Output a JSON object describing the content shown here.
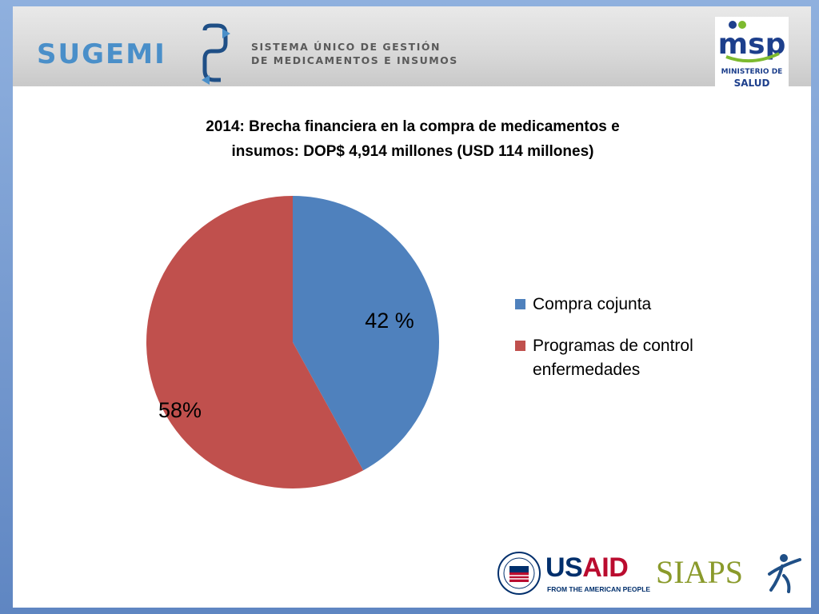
{
  "header": {
    "brand_name": "SUGEMI",
    "brand_subtitle_line1": "SISTEMA ÚNICO DE GESTIÓN",
    "brand_subtitle_line2": "DE MEDICAMENTOS E INSUMOS",
    "ministry_logo_lines": [
      "msp",
      "MINISTERIO DE",
      "SALUD PÚBLICA"
    ]
  },
  "chart_data": {
    "type": "pie",
    "title_line1": "2014: Brecha financiera en la compra de medicamentos e",
    "title_line2": "insumos: DOP$ 4,914 millones (USD 114 millones)",
    "categories": [
      "Compra cojunta",
      "Programas de control enfermedades"
    ],
    "values": [
      42,
      58
    ],
    "data_labels": [
      "42 %",
      "58%"
    ],
    "colors": [
      "#4f81bd",
      "#c0504d"
    ],
    "legend_position": "right",
    "legend_lines": [
      [
        "Compra cojunta"
      ],
      [
        "Programas de control",
        "enfermedades"
      ]
    ]
  },
  "footer": {
    "usaid_word_blue": "US",
    "usaid_word_red": "AID",
    "usaid_tagline": "FROM THE AMERICAN PEOPLE",
    "siaps_word": "SIAPS"
  }
}
